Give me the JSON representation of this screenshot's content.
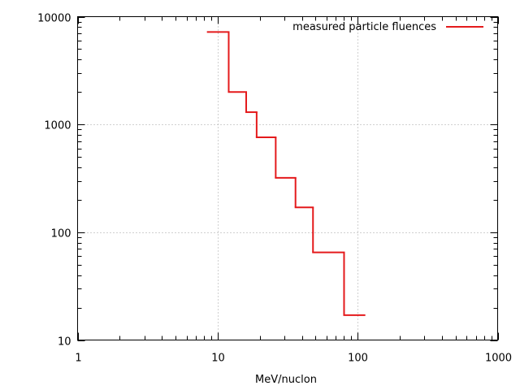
{
  "chart_data": {
    "type": "line",
    "step": "histogram",
    "xlabel": "MeV/nuclon",
    "ylabel": "",
    "xscale": "log",
    "yscale": "log",
    "xlim": [
      1,
      1000
    ],
    "ylim": [
      10,
      10000
    ],
    "x_ticks": [
      "1",
      "10",
      "100",
      "1000"
    ],
    "y_ticks": [
      "10",
      "100",
      "1000",
      "10000"
    ],
    "grid": true,
    "legend_position": "top-right",
    "series": [
      {
        "name": "measured particle fluences",
        "color": "#e41a1c",
        "bins": [
          {
            "x_from": 8.5,
            "x_to": 12,
            "y": 7200
          },
          {
            "x_from": 12,
            "x_to": 16,
            "y": 2000
          },
          {
            "x_from": 16,
            "x_to": 19,
            "y": 1300
          },
          {
            "x_from": 19,
            "x_to": 26,
            "y": 760
          },
          {
            "x_from": 26,
            "x_to": 36,
            "y": 320
          },
          {
            "x_from": 36,
            "x_to": 48,
            "y": 170
          },
          {
            "x_from": 48,
            "x_to": 80,
            "y": 65
          },
          {
            "x_from": 80,
            "x_to": 112,
            "y": 17
          }
        ]
      }
    ]
  }
}
